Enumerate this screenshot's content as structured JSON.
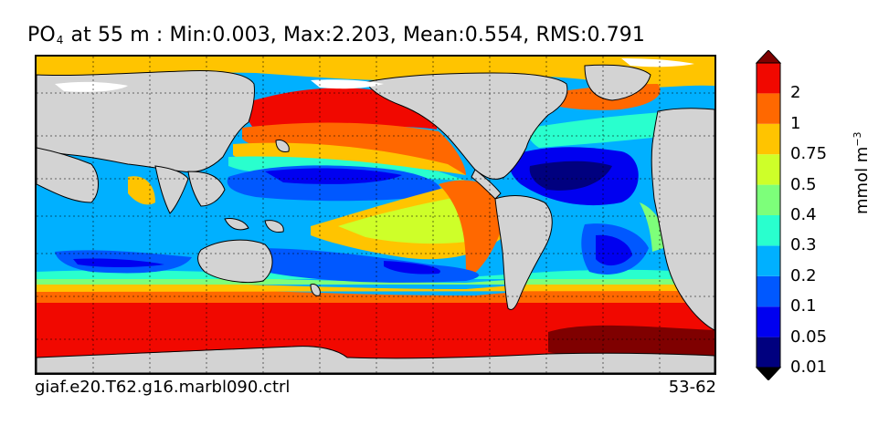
{
  "title": {
    "variable": "PO",
    "variable_subscript": "4",
    "rest": "at 55 m : Min:0.003, Max:2.203, Mean:0.554, RMS:0.791"
  },
  "caption_left": "giaf.e20.T62.g16.marbl090.ctrl",
  "caption_right": "53-62",
  "colorbar": {
    "unit_main": "mmol m",
    "unit_exp": "−3",
    "extend": "both",
    "levels": [
      {
        "label": "",
        "color": "#00007f"
      },
      {
        "label": "0.01",
        "color": "#0000f0"
      },
      {
        "label": "0.05",
        "color": "#0058ff"
      },
      {
        "label": "0.1",
        "color": "#00b0ff"
      },
      {
        "label": "0.2",
        "color": "#29ffce"
      },
      {
        "label": "0.3",
        "color": "#7dff7a"
      },
      {
        "label": "0.4",
        "color": "#ceff29"
      },
      {
        "label": "0.5",
        "color": "#ffc400"
      },
      {
        "label": "0.75",
        "color": "#ff6800"
      },
      {
        "label": "1",
        "color": "#f10800"
      },
      {
        "label": "2",
        "color": "#7f0000"
      }
    ]
  },
  "colors": {
    "land": "#d3d3d3",
    "ice": "#ffffff",
    "frame": "#000000"
  }
}
